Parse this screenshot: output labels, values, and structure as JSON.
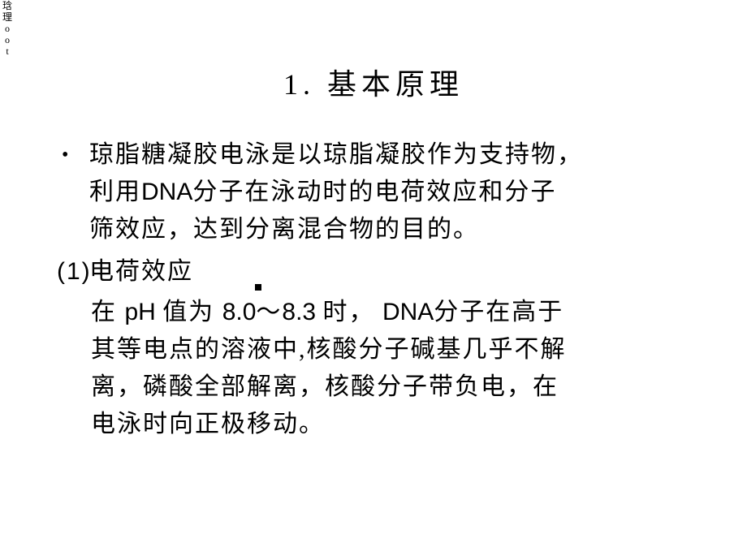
{
  "edge": {
    "c1": "琀",
    "c2": "理",
    "c3": "o",
    "c4": "o",
    "c5": "t"
  },
  "title": "1. 基本原理",
  "bullet": {
    "text_full": "琼脂糖凝胶电泳是以琼脂凝胶作为支持物，利用DNA分子在泳动时的电荷效应和分子筛效应，达到分离混合物的目的。",
    "l1": "琼脂糖凝胶电泳是以琼脂凝胶作为支持物，",
    "l2a": "利用",
    "l2b": "DNA",
    "l2c": "分子在泳动时的电荷效应和分子",
    "l3": "筛效应，达到分离混合物的目的。"
  },
  "sub1": {
    "label": "(1)",
    "text": "电荷效应"
  },
  "sub2": {
    "l1a": "在 ",
    "l1b": "pH ",
    "l1c": "值为 ",
    "l1d": "8.0",
    "l1e": "～",
    "l1f": "8.3 ",
    "l1g": "时， ",
    "l1h": "DNA",
    "l1i": "分子在高于",
    "l2": "其等电点的溶液中,核酸分子碱基几乎不解",
    "l3": "离，磷酸全部解离，核酸分子带负电，在",
    "l4": "电泳时向正极移动。"
  },
  "style": {
    "background": "#ffffff",
    "text_color": "#000000",
    "title_fontsize": 36,
    "body_fontsize": 30,
    "line_height": 46,
    "letter_spacing": 2
  }
}
